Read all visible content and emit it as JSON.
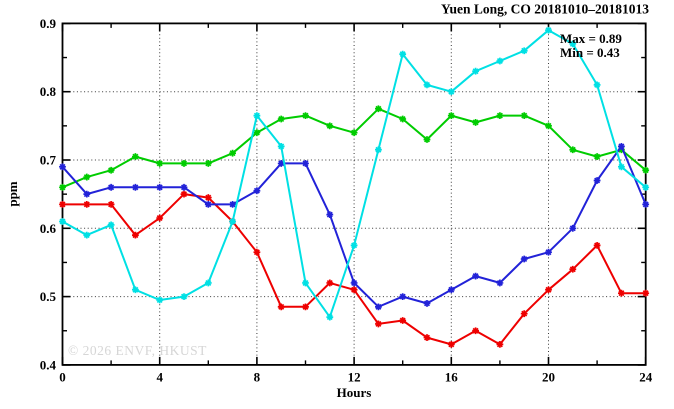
{
  "title": "Yuen Long, CO 20181010–20181013",
  "annotation": {
    "max_label": "Max = 0.89",
    "min_label": "Min = 0.43"
  },
  "watermark": "© 2026 ENVF, HKUST",
  "colors": {
    "axis": "#000000",
    "grid": "#3a3a3a",
    "series_green": "#00cc00",
    "series_red": "#ee0000",
    "series_blue": "#2222d8",
    "series_cyan": "#00e0e4",
    "watermark": "#d6d6d6"
  },
  "chart_data": {
    "type": "line",
    "title": "Yuen Long, CO 20181010–20181013",
    "xlabel": "Hours",
    "ylabel": "ppm",
    "xlim": [
      0,
      24
    ],
    "ylim": [
      0.4,
      0.9
    ],
    "xticks": [
      0,
      4,
      8,
      12,
      16,
      20,
      24
    ],
    "xminor_step": 2,
    "yticks": [
      0.4,
      0.5,
      0.6,
      0.7,
      0.8,
      0.9
    ],
    "yminor_step": 0.05,
    "grid": true,
    "legend": "none",
    "annotations": [
      "Max = 0.89",
      "Min = 0.43"
    ],
    "x": [
      0,
      1,
      2,
      3,
      4,
      5,
      6,
      7,
      8,
      9,
      10,
      11,
      12,
      13,
      14,
      15,
      16,
      17,
      18,
      19,
      20,
      21,
      22,
      23,
      24
    ],
    "series": [
      {
        "name": "green-line",
        "color": "#00cc00",
        "values": [
          0.66,
          0.675,
          0.685,
          0.705,
          0.695,
          0.695,
          0.695,
          0.71,
          0.74,
          0.76,
          0.765,
          0.75,
          0.74,
          0.775,
          0.76,
          0.73,
          0.765,
          0.755,
          0.765,
          0.765,
          0.75,
          0.715,
          0.705,
          0.715,
          0.685
        ]
      },
      {
        "name": "red-line",
        "color": "#ee0000",
        "values": [
          0.635,
          0.635,
          0.635,
          0.59,
          0.615,
          0.65,
          0.645,
          0.61,
          0.565,
          0.485,
          0.485,
          0.52,
          0.51,
          0.46,
          0.465,
          0.44,
          0.43,
          0.45,
          0.43,
          0.475,
          0.51,
          0.54,
          0.575,
          0.505,
          0.505
        ]
      },
      {
        "name": "blue-line",
        "color": "#2222d8",
        "values": [
          0.69,
          0.65,
          0.66,
          0.66,
          0.66,
          0.66,
          0.635,
          0.635,
          0.655,
          0.695,
          0.695,
          0.62,
          0.52,
          0.485,
          0.5,
          0.49,
          0.51,
          0.53,
          0.52,
          0.555,
          0.565,
          0.6,
          0.67,
          0.72,
          0.635
        ]
      },
      {
        "name": "cyan-line",
        "color": "#00e0e4",
        "values": [
          0.61,
          0.59,
          0.605,
          0.51,
          0.495,
          0.5,
          0.52,
          0.61,
          0.765,
          0.72,
          0.52,
          0.47,
          0.575,
          0.715,
          0.855,
          0.81,
          0.8,
          0.83,
          0.845,
          0.86,
          0.89,
          0.87,
          0.81,
          0.69,
          0.66
        ]
      }
    ]
  }
}
